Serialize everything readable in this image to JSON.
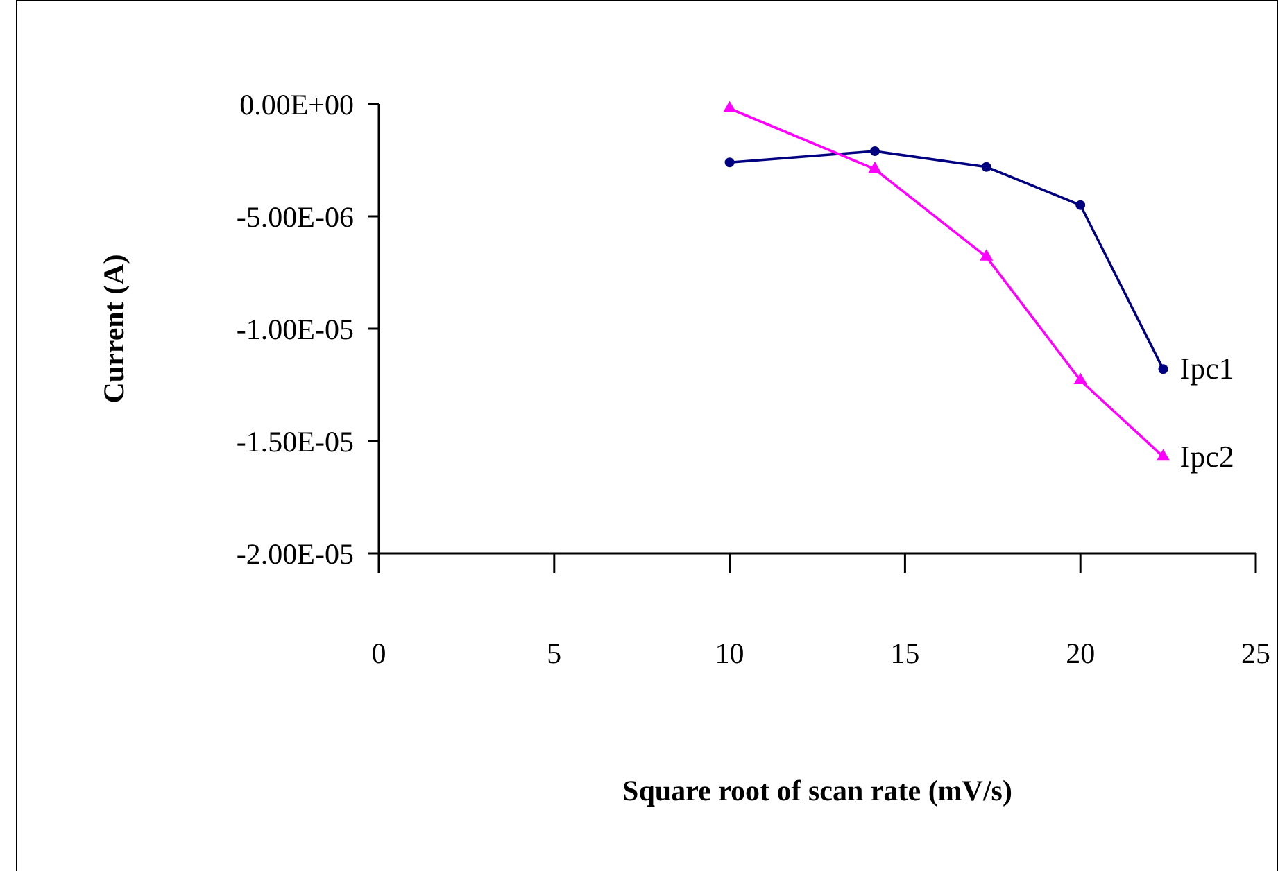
{
  "chart_data": {
    "type": "line",
    "xlabel": "Square root of scan rate (mV/s)",
    "ylabel": "Current (A)",
    "xlim": [
      0,
      25
    ],
    "xticks": [
      0,
      5,
      10,
      15,
      20,
      25
    ],
    "ylim": [
      -2e-05,
      0
    ],
    "yticks": [
      {
        "value": 0,
        "label": "0.00E+00"
      },
      {
        "value": -5e-06,
        "label": "-5.00E-06"
      },
      {
        "value": -1e-05,
        "label": "-1.00E-05"
      },
      {
        "value": -1.5e-05,
        "label": "-1.50E-05"
      },
      {
        "value": -2e-05,
        "label": "-2.00E-05"
      }
    ],
    "grid": false,
    "legend": false,
    "series": [
      {
        "name": "Ipc1",
        "color": "#000080",
        "marker": "circle",
        "x": [
          10,
          14.14,
          17.32,
          20,
          22.36
        ],
        "values": [
          -2.6e-06,
          -2.1e-06,
          -2.8e-06,
          -4.5e-06,
          -1.18e-05
        ]
      },
      {
        "name": "Ipc2",
        "color": "#ff00ff",
        "marker": "triangle",
        "x": [
          10,
          14.14,
          17.32,
          20,
          22.36
        ],
        "values": [
          -2e-07,
          -2.9e-06,
          -6.8e-06,
          -1.23e-05,
          -1.57e-05
        ]
      }
    ]
  }
}
